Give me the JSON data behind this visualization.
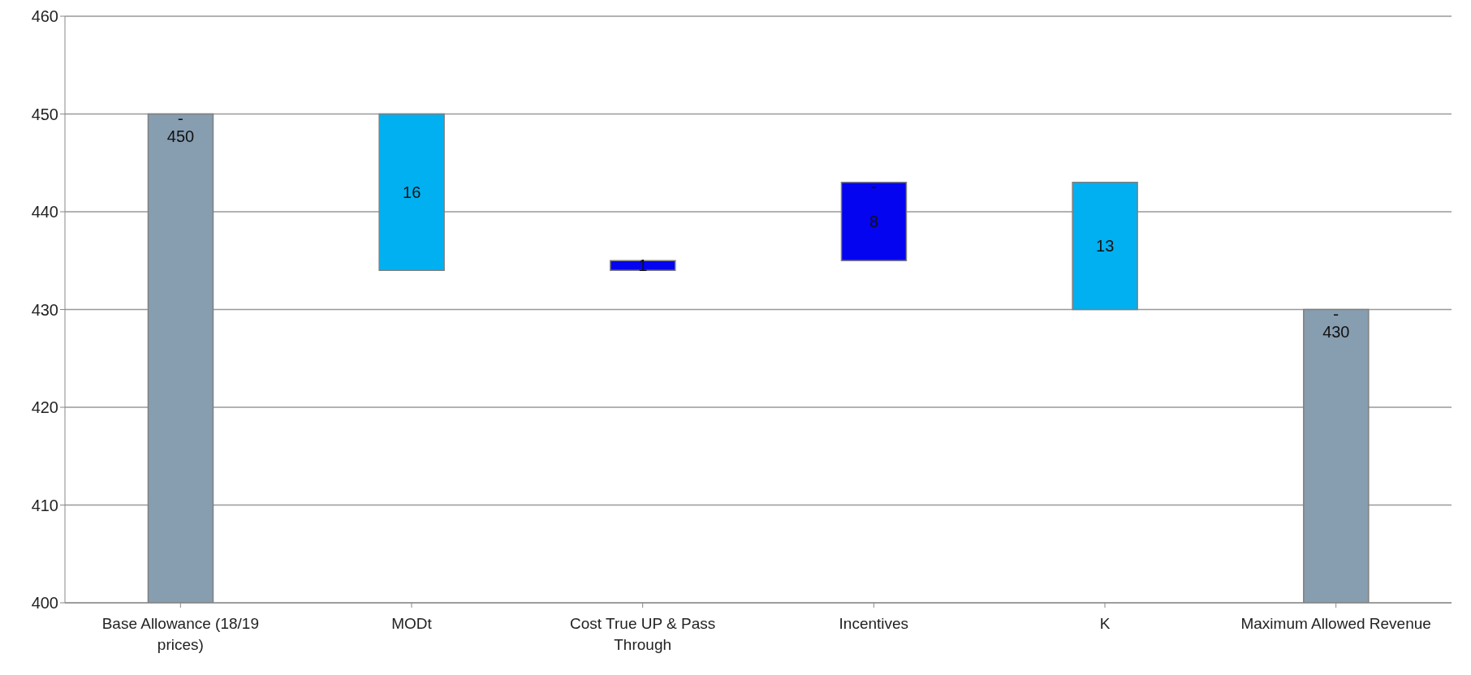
{
  "chart_data": {
    "type": "bar",
    "categories": [
      "Base Allowance (18/19 prices)",
      "MODt",
      "Cost True UP & Pass Through",
      "Incentives",
      "K",
      "Maximum Allowed Revenue"
    ],
    "values": [
      450,
      16,
      1,
      8,
      13,
      430
    ],
    "base": [
      0,
      434,
      434,
      435,
      430,
      0
    ],
    "colors": [
      "#879db0",
      "#00b0f0",
      "#0404f0",
      "#0404f0",
      "#00b0f0",
      "#879db0"
    ],
    "data_labels": true,
    "annotations": [
      {
        "text": "-",
        "x": "Base Allowance (18/19 prices)",
        "y": 450
      },
      {
        "text": "-",
        "x": "Incentives",
        "y": 443
      },
      {
        "text": "-",
        "x": "Maximum Allowed Revenue",
        "y": 430
      }
    ],
    "ylim": [
      400,
      460
    ],
    "yticks": [
      400,
      410,
      420,
      430,
      440,
      450,
      460
    ],
    "grid": "y",
    "legend": false
  }
}
